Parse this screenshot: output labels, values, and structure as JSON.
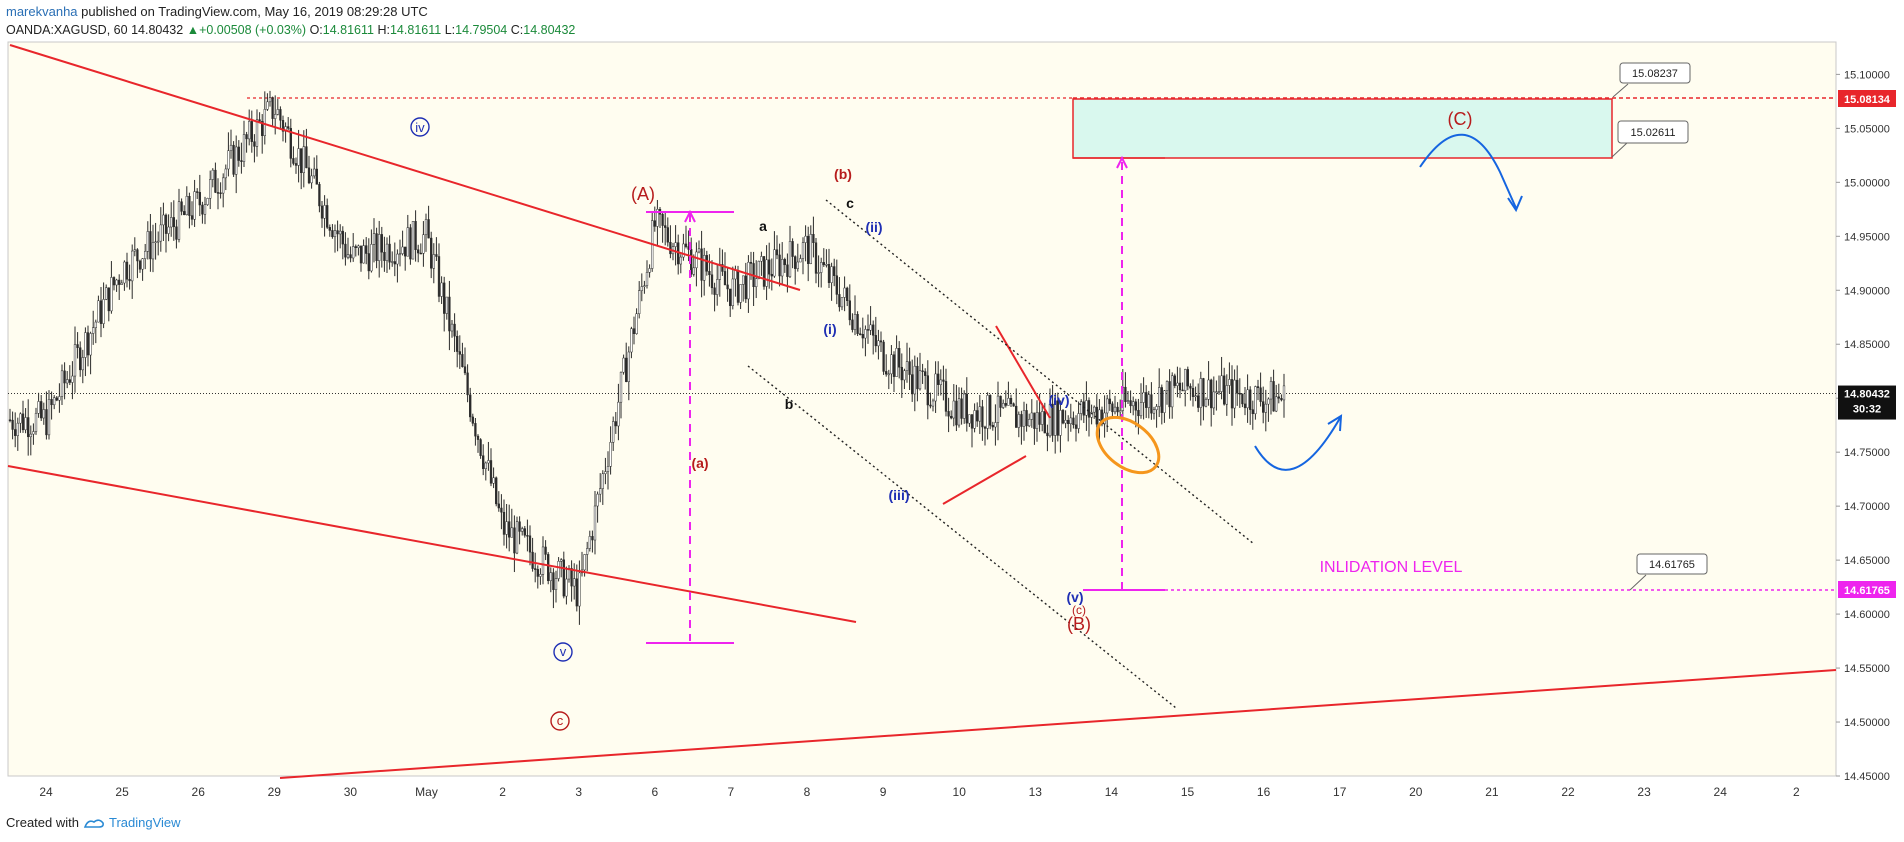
{
  "header": {
    "author": "marekvanha",
    "published_text": " published on TradingView.com, May 16, 2019 08:29:28 UTC",
    "symbol": "OANDA:XAGUSD, 60",
    "last": "14.80432",
    "change": "+0.00508 (+0.03%)",
    "o_label": "O:",
    "o_value": "14.81611",
    "h_label": "H:",
    "h_value": "14.81611",
    "l_label": "L:",
    "l_value": "14.79504",
    "c_label": "C:",
    "c_value": "14.80432"
  },
  "footer": {
    "created_with": "Created with",
    "brand": "TradingView"
  },
  "colors": {
    "background": "#fffdf0",
    "candles": "#2b2b2b",
    "trendline": "#e8262b",
    "magenta": "#ee24ee",
    "wave_blue": "#1f2fb4",
    "wave_red": "#b71c1c",
    "target_box": "#d9f8ee",
    "orange": "#f5961c",
    "arrow_blue": "#1565e0"
  },
  "chart_data": {
    "type": "candlestick",
    "symbol": "OANDA:XAGUSD",
    "interval": "60",
    "ylim": [
      14.45,
      15.13
    ],
    "yticks": [
      "14.45000",
      "14.50000",
      "14.55000",
      "14.60000",
      "14.65000",
      "14.70000",
      "14.75000",
      "14.80000",
      "14.85000",
      "14.90000",
      "14.95000",
      "15.00000",
      "15.05000",
      "15.10000"
    ],
    "xticks": [
      "24",
      "25",
      "26",
      "29",
      "30",
      "May",
      "2",
      "3",
      "6",
      "7",
      "8",
      "9",
      "10",
      "13",
      "14",
      "15",
      "16",
      "17",
      "20",
      "21",
      "22",
      "23",
      "24",
      "2"
    ],
    "price_path_anchors": [
      {
        "date": "24",
        "price": 14.78
      },
      {
        "date": "25",
        "price": 14.92
      },
      {
        "date": "26",
        "price": 14.98
      },
      {
        "date": "29",
        "price": 15.07
      },
      {
        "date": "30",
        "price": 14.93
      },
      {
        "date": "May",
        "price": 14.95
      },
      {
        "date": "2",
        "price": 14.68
      },
      {
        "date": "3",
        "price": 14.62
      },
      {
        "date": "6",
        "price": 14.96
      },
      {
        "date": "7",
        "price": 14.9
      },
      {
        "date": "8",
        "price": 14.94
      },
      {
        "date": "9",
        "price": 14.84
      },
      {
        "date": "10",
        "price": 14.79
      },
      {
        "date": "13",
        "price": 14.78
      },
      {
        "date": "14",
        "price": 14.79
      },
      {
        "date": "15",
        "price": 14.81
      },
      {
        "date": "16",
        "price": 14.8
      }
    ],
    "last_price": "14.80432",
    "countdown": "30:32",
    "price_labels": [
      {
        "text": "15.08134",
        "value": 15.08134
      },
      {
        "text": "14.61765",
        "value": 14.61765
      }
    ],
    "callouts": [
      "15.08237",
      "15.02611",
      "14.61765"
    ],
    "annotations": {
      "iv_circle": "iv",
      "v_circle": "v",
      "c_circle": "c",
      "A": "(A)",
      "B": "(B)",
      "C": "(C)",
      "a_small": "(a)",
      "b_small": "(b)",
      "c_small": "(c)",
      "a": "a",
      "b": "b",
      "c": "c",
      "i": "(i)",
      "ii": "(ii)",
      "iii": "(iii)",
      "iv": "(iv)",
      "v": "(v)",
      "invalidation": "INLIDATION LEVEL"
    }
  }
}
